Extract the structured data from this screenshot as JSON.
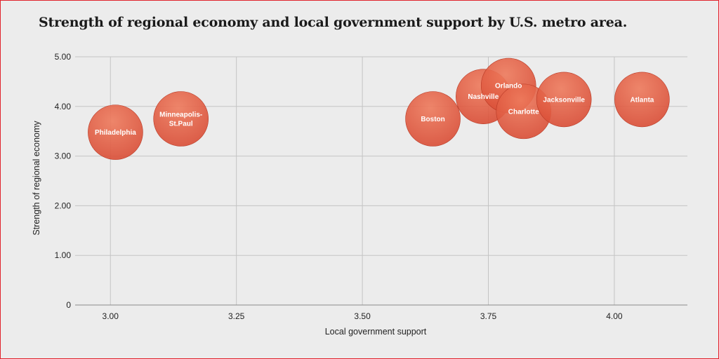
{
  "chart_data": {
    "type": "scatter",
    "title": "Strength of regional economy and local government support by U.S. metro area.",
    "xlabel": "Local government support",
    "ylabel": "Strength of regional economy",
    "xlim": [
      2.93,
      4.145
    ],
    "ylim": [
      0,
      5.0
    ],
    "x_ticks": [
      3.0,
      3.25,
      3.5,
      3.75,
      4.0
    ],
    "x_tick_labels": [
      "3.00",
      "3.25",
      "3.50",
      "3.75",
      "4.00"
    ],
    "y_ticks": [
      0,
      1,
      2,
      3,
      4,
      5
    ],
    "y_tick_labels": [
      "0",
      "1.00",
      "2.00",
      "3.00",
      "4.00",
      "5.00"
    ],
    "grid": true,
    "bubble_color": "#d84a33",
    "points": [
      {
        "name": "Philadelphia",
        "label_lines": [
          "Philadelphia"
        ],
        "x": 3.01,
        "y": 3.48
      },
      {
        "name": "Minneapolis-St.Paul",
        "label_lines": [
          "Minneapolis-",
          "St.Paul"
        ],
        "x": 3.14,
        "y": 3.75
      },
      {
        "name": "Boston",
        "label_lines": [
          "Boston"
        ],
        "x": 3.64,
        "y": 3.75
      },
      {
        "name": "Nashville",
        "label_lines": [
          "Nashville"
        ],
        "x": 3.74,
        "y": 4.2
      },
      {
        "name": "Orlando",
        "label_lines": [
          "Orlando"
        ],
        "x": 3.79,
        "y": 4.42
      },
      {
        "name": "Charlotte",
        "label_lines": [
          "Charlotte"
        ],
        "x": 3.82,
        "y": 3.9
      },
      {
        "name": "Jacksonville",
        "label_lines": [
          "Jacksonville"
        ],
        "x": 3.9,
        "y": 4.14
      },
      {
        "name": "Atlanta",
        "label_lines": [
          "Atlanta"
        ],
        "x": 4.055,
        "y": 4.14
      }
    ]
  }
}
